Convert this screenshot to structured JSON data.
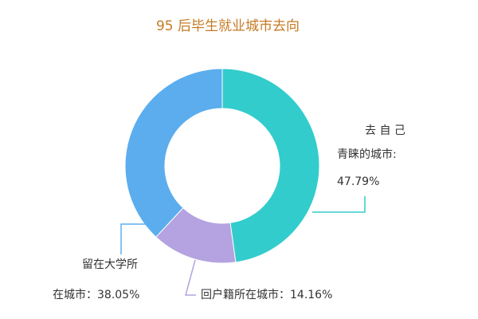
{
  "chart_data": {
    "type": "pie",
    "variant": "donut",
    "title": "95 后毕生就业城市去向",
    "slices": [
      {
        "label_lines": [
          "去 自 己",
          "青睐的城市:",
          "47.79%"
        ],
        "value": 47.79,
        "color": "#33cccc"
      },
      {
        "label_lines": [
          "回户籍所在城市：14.16%"
        ],
        "value": 14.16,
        "color": "#b4a3e0"
      },
      {
        "label_lines": [
          "留在大学所",
          "在城市：38.05%"
        ],
        "value": 38.05,
        "color": "#5badee"
      }
    ],
    "legend": "none",
    "label_position": "outside with leader lines"
  }
}
